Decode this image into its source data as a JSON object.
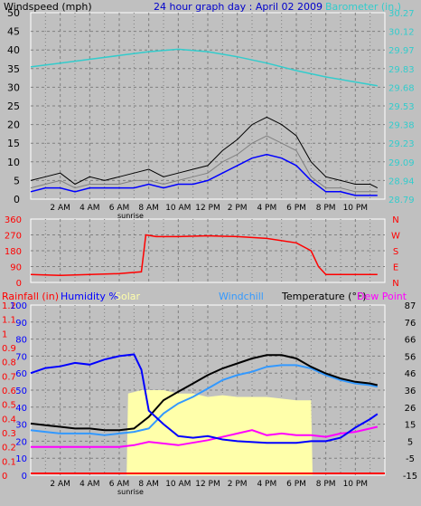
{
  "colors": {
    "background": "#c0c0c0",
    "plot_background": "#000000",
    "grid": "#808080",
    "wind_speed": "#ffffff",
    "wind_gust": "#000000",
    "wind_avg": "#0000ff",
    "barometer": "#33cccc",
    "wind_direction": "#ff0000",
    "rainfall": "#ff0000",
    "humidity": "#0000ff",
    "solar": "#ffffaa",
    "windchill": "#3399ff",
    "temperature": "#000000",
    "dew_point": "#ff00ff",
    "title": "#0000cc"
  },
  "chart_data": [
    {
      "type": "line",
      "title": "24 hour graph day : April 02 2009",
      "ylabel": "Windspeed (mph)",
      "y2label": "Barometer (in.)",
      "ylim": [
        0,
        50
      ],
      "y2lim": [
        28.79,
        30.27
      ],
      "yticks": [
        "50",
        "45",
        "40",
        "35",
        "30",
        "25",
        "20",
        "15",
        "10",
        "5",
        "0"
      ],
      "y2ticks": [
        "30.27",
        "30.12",
        "29.97",
        "29.83",
        "29.68",
        "29.53",
        "29.38",
        "29.23",
        "29.09",
        "28.94",
        "28.79"
      ],
      "x_tick_labels": [
        "2 AM",
        "4 AM",
        "6 AM",
        "8 AM",
        "10 AM",
        "12 PM",
        "2 PM",
        "4 PM",
        "6 PM",
        "8 PM",
        "10 PM"
      ],
      "x_marker": "sunrise",
      "xlim": [
        0,
        24
      ],
      "series": [
        {
          "name": "Barometer",
          "axis": "right",
          "x": [
            0,
            2,
            4,
            6,
            8,
            10,
            12,
            14,
            16,
            18,
            20,
            22,
            23.5
          ],
          "y": [
            29.84,
            29.87,
            29.9,
            29.93,
            29.96,
            29.98,
            29.96,
            29.92,
            29.87,
            29.81,
            29.76,
            29.72,
            29.69
          ]
        },
        {
          "name": "Gust",
          "axis": "left",
          "x": [
            0,
            1,
            2,
            3,
            4,
            5,
            6,
            7,
            8,
            9,
            10,
            11,
            12,
            13,
            14,
            15,
            16,
            17,
            18,
            19,
            20,
            21,
            22,
            23,
            23.5
          ],
          "y": [
            5,
            6,
            7,
            4,
            6,
            5,
            6,
            7,
            8,
            6,
            7,
            8,
            9,
            13,
            16,
            20,
            22,
            20,
            17,
            10,
            6,
            5,
            4,
            4,
            3
          ]
        },
        {
          "name": "Wind Speed",
          "axis": "left",
          "x": [
            0,
            1,
            2,
            3,
            4,
            5,
            6,
            7,
            8,
            9,
            10,
            11,
            12,
            13,
            14,
            15,
            16,
            17,
            18,
            19,
            20,
            21,
            22,
            23,
            23.5
          ],
          "y": [
            3,
            4,
            5,
            3,
            4,
            4,
            4,
            5,
            5,
            4,
            5,
            6,
            7,
            10,
            12,
            15,
            17,
            15,
            13,
            6,
            3,
            3,
            2,
            2,
            2
          ]
        },
        {
          "name": "Wind Avg",
          "axis": "left",
          "x": [
            0,
            1,
            2,
            3,
            4,
            5,
            6,
            7,
            8,
            9,
            10,
            11,
            12,
            13,
            14,
            15,
            16,
            17,
            18,
            19,
            20,
            21,
            22,
            23,
            23.5
          ],
          "y": [
            2,
            3,
            3,
            2,
            3,
            3,
            3,
            3,
            4,
            3,
            4,
            4,
            5,
            7,
            9,
            11,
            12,
            11,
            9,
            5,
            2,
            2,
            1,
            1,
            1
          ]
        }
      ]
    },
    {
      "type": "line",
      "yticks": [
        "360",
        "270",
        "180",
        "90",
        "0"
      ],
      "y2ticks": [
        "N",
        "W",
        "S",
        "E",
        "N"
      ],
      "ylim": [
        0,
        360
      ],
      "xlim": [
        0,
        24
      ],
      "x_tick_labels": [
        "2 AM",
        "4 AM",
        "6 AM",
        "8 AM",
        "10 AM",
        "12 PM",
        "2 PM",
        "4 PM",
        "6 PM",
        "8 PM",
        "10 PM"
      ],
      "series": [
        {
          "name": "Wind Direction",
          "x": [
            0,
            2,
            4,
            6,
            7.5,
            7.8,
            8.5,
            10,
            12,
            14,
            16,
            18,
            19,
            19.5,
            20,
            21,
            23.5
          ],
          "y": [
            45,
            40,
            45,
            50,
            60,
            270,
            260,
            260,
            265,
            260,
            250,
            225,
            180,
            90,
            45,
            45,
            45
          ]
        }
      ]
    },
    {
      "type": "line",
      "ylabel_rain": "Rainfall (in)",
      "ylabel_humidity": "Humidity %",
      "solar_label": "Solar",
      "windchill_label": "Windchill",
      "temperature_label": "Temperature (°F)",
      "dewpoint_label": "Dew Point",
      "rain_ticks": [
        "1.2",
        "1.1",
        "1",
        "0.9",
        "0.8",
        "0.7",
        "0.6",
        "0.5",
        "0.4",
        "0.3",
        "0.2",
        "0.1",
        "0"
      ],
      "humidity_ticks": [
        "100",
        "90",
        "80",
        "70",
        "60",
        "50",
        "40",
        "30",
        "20",
        "10",
        "0"
      ],
      "temp_ticks": [
        "87",
        "76",
        "66",
        "56",
        "46",
        "36",
        "26",
        "15",
        "5",
        "-5",
        "-15"
      ],
      "temp_lim": [
        -15,
        87
      ],
      "humidity_lim": [
        0,
        100
      ],
      "xlim": [
        0,
        24
      ],
      "x_tick_labels": [
        "2 AM",
        "4 AM",
        "6 AM",
        "8 AM",
        "10 AM",
        "12 PM",
        "2 PM",
        "4 PM",
        "6 PM",
        "8 PM",
        "10 PM"
      ],
      "x_marker": "sunrise",
      "series": [
        {
          "name": "Humidity",
          "axis": "humidity",
          "x": [
            0,
            1,
            2,
            3,
            4,
            5,
            6,
            7,
            7.5,
            8,
            9,
            10,
            11,
            12,
            13,
            14,
            16,
            18,
            19,
            20,
            21,
            22,
            23,
            23.5
          ],
          "y": [
            60,
            63,
            64,
            66,
            65,
            68,
            70,
            71,
            62,
            38,
            30,
            23,
            22,
            23,
            21,
            20,
            19,
            19,
            20,
            20,
            22,
            28,
            33,
            36
          ]
        },
        {
          "name": "Temperature",
          "axis": "temp",
          "x": [
            0,
            1,
            2,
            3,
            4,
            5,
            6,
            7,
            8,
            9,
            10,
            11,
            12,
            13,
            14,
            15,
            16,
            17,
            18,
            19,
            20,
            21,
            22,
            23,
            23.5
          ],
          "y": [
            16,
            15,
            14,
            13,
            13,
            12,
            12,
            13,
            20,
            30,
            35,
            40,
            45,
            49,
            52,
            55,
            57,
            57,
            55,
            50,
            46,
            43,
            41,
            40,
            39
          ]
        },
        {
          "name": "Windchill",
          "axis": "temp",
          "x": [
            0,
            1,
            2,
            3,
            4,
            5,
            6,
            7,
            8,
            9,
            10,
            11,
            12,
            13,
            14,
            15,
            16,
            17,
            18,
            19,
            20,
            21,
            22,
            23,
            23.5
          ],
          "y": [
            12,
            11,
            10,
            10,
            10,
            9,
            10,
            11,
            13,
            22,
            28,
            32,
            37,
            42,
            45,
            47,
            50,
            51,
            51,
            49,
            45,
            42,
            40,
            39,
            38
          ]
        },
        {
          "name": "Dew Point",
          "axis": "temp",
          "x": [
            0,
            2,
            4,
            6,
            7,
            8,
            10,
            12,
            14,
            15,
            16,
            17,
            18,
            19,
            20,
            21,
            22,
            23,
            23.5
          ],
          "y": [
            2,
            2,
            2,
            2,
            3,
            5,
            3,
            6,
            10,
            12,
            9,
            10,
            9,
            9,
            8,
            10,
            11,
            13,
            14
          ]
        },
        {
          "name": "Solar",
          "axis": "humidity",
          "x": [
            0,
            6.5,
            6.6,
            7.5,
            8,
            9,
            10,
            11,
            12,
            13,
            14,
            15,
            16,
            17,
            18,
            19,
            19.1,
            23.5
          ],
          "y": [
            0,
            0,
            48,
            50,
            50,
            50,
            48,
            48,
            46,
            47,
            46,
            46,
            46,
            45,
            44,
            44,
            0,
            0
          ]
        }
      ]
    }
  ]
}
